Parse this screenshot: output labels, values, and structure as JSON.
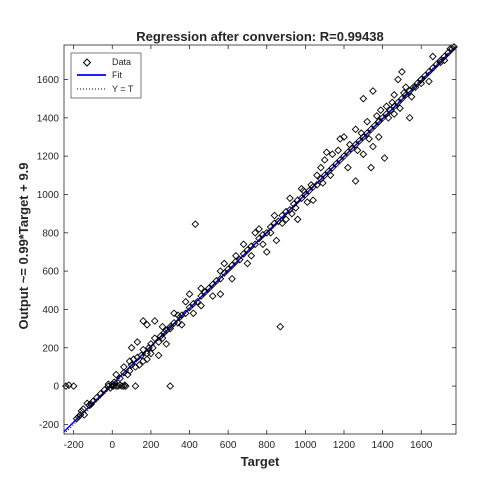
{
  "chart_data": {
    "type": "scatter",
    "title": "Regression after conversion: R=0.99438",
    "xlabel": "Target",
    "ylabel": "Output ~= 0.99*Target + 9.9",
    "xlim": [
      -250,
      1780
    ],
    "ylim": [
      -250,
      1780
    ],
    "xticks": [
      -200,
      0,
      200,
      400,
      600,
      800,
      1000,
      1200,
      1400,
      1600
    ],
    "yticks": [
      -200,
      0,
      200,
      400,
      600,
      800,
      1000,
      1200,
      1400,
      1600
    ],
    "xtick_labels": [
      "-200",
      "0",
      "200",
      "400",
      "600",
      "800",
      "1000",
      "1200",
      "1400",
      "1600"
    ],
    "ytick_labels": [
      "-200",
      "0",
      "200",
      "400",
      "600",
      "800",
      "1000",
      "1200",
      "1400",
      "1600"
    ],
    "grid": false,
    "legend": {
      "placement": "top-left",
      "entries": [
        "Data",
        "Fit",
        "Y = T"
      ]
    },
    "fit": {
      "slope": 0.99,
      "intercept": 9.9,
      "color": "#0000ff"
    },
    "identity_line": {
      "color": "#000000",
      "style": "dotted"
    },
    "series": [
      {
        "name": "Data",
        "marker": "diamond",
        "color": "#000000",
        "points": [
          [
            -240,
            0
          ],
          [
            -225,
            5
          ],
          [
            -200,
            0
          ],
          [
            -185,
            -170
          ],
          [
            -175,
            -160
          ],
          [
            -165,
            -150
          ],
          [
            -160,
            -130
          ],
          [
            -150,
            -120
          ],
          [
            -145,
            -150
          ],
          [
            -130,
            -90
          ],
          [
            -120,
            -100
          ],
          [
            -110,
            -95
          ],
          [
            -100,
            -80
          ],
          [
            -80,
            -60
          ],
          [
            -60,
            -40
          ],
          [
            -40,
            -20
          ],
          [
            -20,
            0
          ],
          [
            0,
            10
          ],
          [
            5,
            0
          ],
          [
            10,
            5
          ],
          [
            20,
            0
          ],
          [
            30,
            0
          ],
          [
            40,
            5
          ],
          [
            50,
            0
          ],
          [
            60,
            0
          ],
          [
            65,
            5
          ],
          [
            70,
            0
          ],
          [
            20,
            60
          ],
          [
            40,
            40
          ],
          [
            60,
            70
          ],
          [
            80,
            60
          ],
          [
            90,
            130
          ],
          [
            100,
            110
          ],
          [
            120,
            100
          ],
          [
            130,
            150
          ],
          [
            150,
            160
          ],
          [
            160,
            190
          ],
          [
            180,
            170
          ],
          [
            190,
            200
          ],
          [
            200,
            220
          ],
          [
            210,
            200
          ],
          [
            220,
            250
          ],
          [
            240,
            230
          ],
          [
            250,
            260
          ],
          [
            260,
            250
          ],
          [
            270,
            280
          ],
          [
            280,
            290
          ],
          [
            300,
            310
          ],
          [
            320,
            330
          ],
          [
            340,
            330
          ],
          [
            350,
            360
          ],
          [
            360,
            370
          ],
          [
            380,
            380
          ],
          [
            400,
            410
          ],
          [
            420,
            430
          ],
          [
            440,
            440
          ],
          [
            460,
            470
          ],
          [
            480,
            490
          ],
          [
            500,
            510
          ],
          [
            520,
            530
          ],
          [
            540,
            550
          ],
          [
            560,
            560
          ],
          [
            580,
            590
          ],
          [
            600,
            610
          ],
          [
            620,
            630
          ],
          [
            640,
            650
          ],
          [
            660,
            660
          ],
          [
            680,
            690
          ],
          [
            700,
            710
          ],
          [
            720,
            730
          ],
          [
            740,
            740
          ],
          [
            760,
            770
          ],
          [
            780,
            790
          ],
          [
            800,
            800
          ],
          [
            820,
            830
          ],
          [
            840,
            850
          ],
          [
            860,
            860
          ],
          [
            880,
            890
          ],
          [
            900,
            910
          ],
          [
            920,
            920
          ],
          [
            940,
            950
          ],
          [
            960,
            970
          ],
          [
            980,
            980
          ],
          [
            1000,
            1000
          ],
          [
            1020,
            1020
          ],
          [
            1040,
            1040
          ],
          [
            1060,
            1050
          ],
          [
            1080,
            1080
          ],
          [
            1100,
            1100
          ],
          [
            1120,
            1120
          ],
          [
            1140,
            1140
          ],
          [
            1160,
            1160
          ],
          [
            1180,
            1180
          ],
          [
            1200,
            1200
          ],
          [
            1220,
            1220
          ],
          [
            1240,
            1240
          ],
          [
            1260,
            1260
          ],
          [
            1280,
            1280
          ],
          [
            1300,
            1300
          ],
          [
            1320,
            1320
          ],
          [
            1340,
            1340
          ],
          [
            1360,
            1360
          ],
          [
            1380,
            1380
          ],
          [
            1400,
            1400
          ],
          [
            1420,
            1420
          ],
          [
            1440,
            1440
          ],
          [
            1460,
            1460
          ],
          [
            1480,
            1480
          ],
          [
            1500,
            1500
          ],
          [
            1520,
            1520
          ],
          [
            1540,
            1540
          ],
          [
            1560,
            1560
          ],
          [
            1580,
            1580
          ],
          [
            1600,
            1600
          ],
          [
            1620,
            1620
          ],
          [
            1640,
            1640
          ],
          [
            1660,
            1660
          ],
          [
            1680,
            1680
          ],
          [
            1700,
            1700
          ],
          [
            1720,
            1720
          ],
          [
            1740,
            1740
          ],
          [
            1760,
            1760
          ],
          [
            1770,
            1770
          ],
          [
            160,
            340
          ],
          [
            180,
            320
          ],
          [
            220,
            340
          ],
          [
            300,
            300
          ],
          [
            100,
            200
          ],
          [
            130,
            230
          ],
          [
            140,
            110
          ],
          [
            300,
            0
          ],
          [
            120,
            0
          ],
          [
            430,
            845
          ],
          [
            870,
            310
          ],
          [
            1260,
            1070
          ],
          [
            1340,
            1140
          ],
          [
            1380,
            1380
          ],
          [
            1410,
            1190
          ],
          [
            1300,
            1500
          ],
          [
            1350,
            1540
          ],
          [
            1500,
            1640
          ],
          [
            1480,
            1600
          ],
          [
            1600,
            1580
          ],
          [
            1540,
            1400
          ],
          [
            1350,
            1250
          ],
          [
            1180,
            1290
          ],
          [
            1200,
            1300
          ],
          [
            1010,
            960
          ],
          [
            1040,
            970
          ],
          [
            980,
            1030
          ],
          [
            960,
            870
          ],
          [
            1080,
            1140
          ],
          [
            1110,
            1220
          ],
          [
            520,
            470
          ],
          [
            560,
            480
          ],
          [
            580,
            640
          ],
          [
            640,
            680
          ],
          [
            700,
            640
          ],
          [
            760,
            820
          ],
          [
            800,
            700
          ],
          [
            820,
            800
          ],
          [
            850,
            760
          ],
          [
            900,
            870
          ],
          [
            930,
            900
          ],
          [
            1100,
            1180
          ],
          [
            1140,
            1210
          ],
          [
            1220,
            1140
          ],
          [
            1260,
            1340
          ],
          [
            1300,
            1210
          ],
          [
            1320,
            1380
          ],
          [
            1380,
            1300
          ],
          [
            1420,
            1460
          ],
          [
            1460,
            1420
          ],
          [
            1460,
            1520
          ],
          [
            1520,
            1560
          ],
          [
            1600,
            1600
          ],
          [
            1640,
            1590
          ],
          [
            1660,
            1720
          ],
          [
            1700,
            1690
          ],
          [
            1720,
            1700
          ],
          [
            1750,
            1760
          ],
          [
            380,
            440
          ],
          [
            420,
            380
          ],
          [
            460,
            510
          ],
          [
            460,
            420
          ],
          [
            260,
            310
          ],
          [
            280,
            220
          ],
          [
            320,
            380
          ],
          [
            240,
            160
          ],
          [
            200,
            170
          ],
          [
            180,
            140
          ],
          [
            60,
            100
          ],
          [
            90,
            80
          ],
          [
            -20,
            10
          ],
          [
            -10,
            -10
          ],
          [
            0,
            0
          ],
          [
            10,
            20
          ],
          [
            110,
            140
          ],
          [
            160,
            130
          ],
          [
            340,
            370
          ],
          [
            360,
            320
          ],
          [
            400,
            480
          ],
          [
            560,
            600
          ],
          [
            620,
            560
          ],
          [
            680,
            740
          ],
          [
            720,
            680
          ],
          [
            740,
            800
          ],
          [
            780,
            740
          ],
          [
            840,
            890
          ],
          [
            880,
            850
          ],
          [
            920,
            980
          ],
          [
            950,
            930
          ],
          [
            990,
            1020
          ],
          [
            1030,
            1050
          ],
          [
            1060,
            1100
          ],
          [
            1090,
            1060
          ],
          [
            1130,
            1100
          ],
          [
            1170,
            1230
          ],
          [
            1230,
            1260
          ],
          [
            1270,
            1230
          ],
          [
            1290,
            1320
          ],
          [
            1330,
            1290
          ],
          [
            1370,
            1410
          ],
          [
            1390,
            1440
          ],
          [
            1430,
            1400
          ],
          [
            1450,
            1480
          ],
          [
            1490,
            1450
          ],
          [
            1510,
            1530
          ],
          [
            1550,
            1510
          ],
          [
            1570,
            1560
          ]
        ]
      }
    ]
  }
}
